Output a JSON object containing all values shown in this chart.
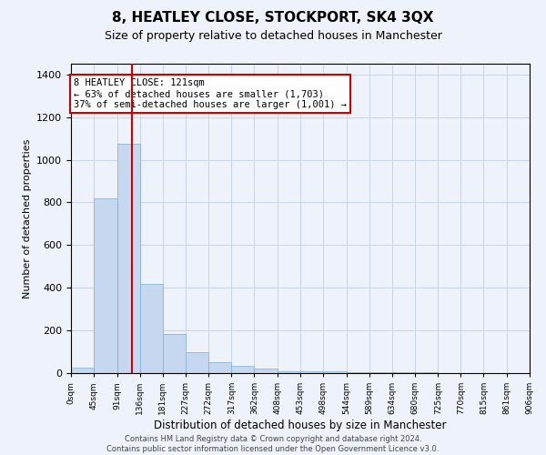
{
  "title": "8, HEATLEY CLOSE, STOCKPORT, SK4 3QX",
  "subtitle": "Size of property relative to detached houses in Manchester",
  "xlabel": "Distribution of detached houses by size in Manchester",
  "ylabel": "Number of detached properties",
  "bar_color": "#c5d8f0",
  "bar_edge_color": "#7faed4",
  "grid_color": "#c8d4e8",
  "background_color": "#eef2fa",
  "bin_labels": [
    "0sqm",
    "45sqm",
    "91sqm",
    "136sqm",
    "181sqm",
    "227sqm",
    "272sqm",
    "317sqm",
    "362sqm",
    "408sqm",
    "453sqm",
    "498sqm",
    "544sqm",
    "589sqm",
    "634sqm",
    "680sqm",
    "725sqm",
    "770sqm",
    "815sqm",
    "861sqm",
    "906sqm"
  ],
  "bin_edges": [
    0,
    45,
    91,
    136,
    181,
    227,
    272,
    317,
    362,
    408,
    453,
    498,
    544,
    589,
    634,
    680,
    725,
    770,
    815,
    861,
    906
  ],
  "bar_heights": [
    25,
    820,
    1075,
    420,
    185,
    100,
    50,
    32,
    20,
    10,
    8,
    7,
    6,
    5,
    4,
    3,
    2,
    2,
    1,
    1,
    0
  ],
  "property_size": 121,
  "property_label": "8 HEATLEY CLOSE: 121sqm",
  "annotation_line1": "← 63% of detached houses are smaller (1,703)",
  "annotation_line2": "37% of semi-detached houses are larger (1,001) →",
  "vline_color": "#cc0000",
  "annotation_box_color": "#ffffff",
  "annotation_box_edge": "#cc0000",
  "ylim": [
    0,
    1450
  ],
  "yticks": [
    0,
    200,
    400,
    600,
    800,
    1000,
    1200,
    1400
  ],
  "footer_line1": "Contains HM Land Registry data © Crown copyright and database right 2024.",
  "footer_line2": "Contains public sector information licensed under the Open Government Licence v3.0.",
  "figsize": [
    6.0,
    5.0
  ],
  "dpi": 100
}
